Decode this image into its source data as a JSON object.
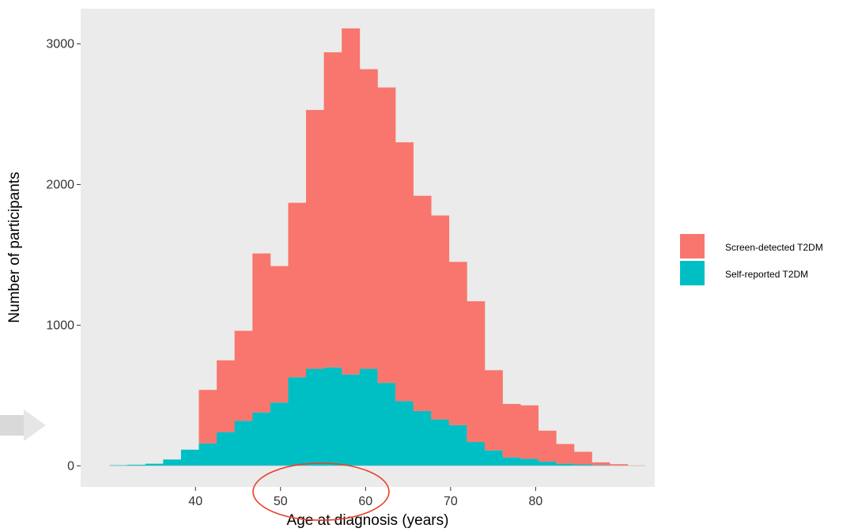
{
  "chart_data": {
    "type": "bar",
    "subtype": "stacked-histogram",
    "xlabel": "Age at diagnosis (years)",
    "ylabel": "Number of participants",
    "x_ticks": [
      40,
      50,
      60,
      70,
      80
    ],
    "y_ticks": [
      0,
      1000,
      2000,
      3000
    ],
    "xlim": [
      26.5,
      94
    ],
    "ylim": [
      -150,
      3250
    ],
    "bin_width": 2.1,
    "bin_starts": [
      29.9,
      32.0,
      34.1,
      36.2,
      38.3,
      40.4,
      42.5,
      44.6,
      46.7,
      48.8,
      50.9,
      53.0,
      55.1,
      57.2,
      59.3,
      61.4,
      63.5,
      65.6,
      67.7,
      69.8,
      71.9,
      74.0,
      76.1,
      78.2,
      80.3,
      82.4,
      84.5,
      86.6,
      88.7,
      90.8
    ],
    "series": [
      {
        "name": "Screen-detected T2DM",
        "color": "#F8766D",
        "values": [
          0,
          0,
          0,
          0,
          0,
          380,
          510,
          640,
          1130,
          970,
          1240,
          1840,
          2240,
          2460,
          2130,
          2100,
          1840,
          1530,
          1450,
          1160,
          1000,
          570,
          380,
          380,
          220,
          140,
          90,
          20,
          10,
          2
        ]
      },
      {
        "name": "Self-reported T2DM",
        "color": "#00BFC4",
        "values": [
          5,
          8,
          15,
          45,
          115,
          160,
          240,
          320,
          380,
          450,
          630,
          690,
          700,
          650,
          690,
          590,
          460,
          390,
          330,
          290,
          170,
          110,
          60,
          50,
          30,
          15,
          10,
          5,
          2,
          1
        ]
      }
    ],
    "panel_background": "#EBEBEB",
    "grid": false,
    "legend_position": "right",
    "annotation": "red ellipse around x-axis labels 50-60"
  }
}
